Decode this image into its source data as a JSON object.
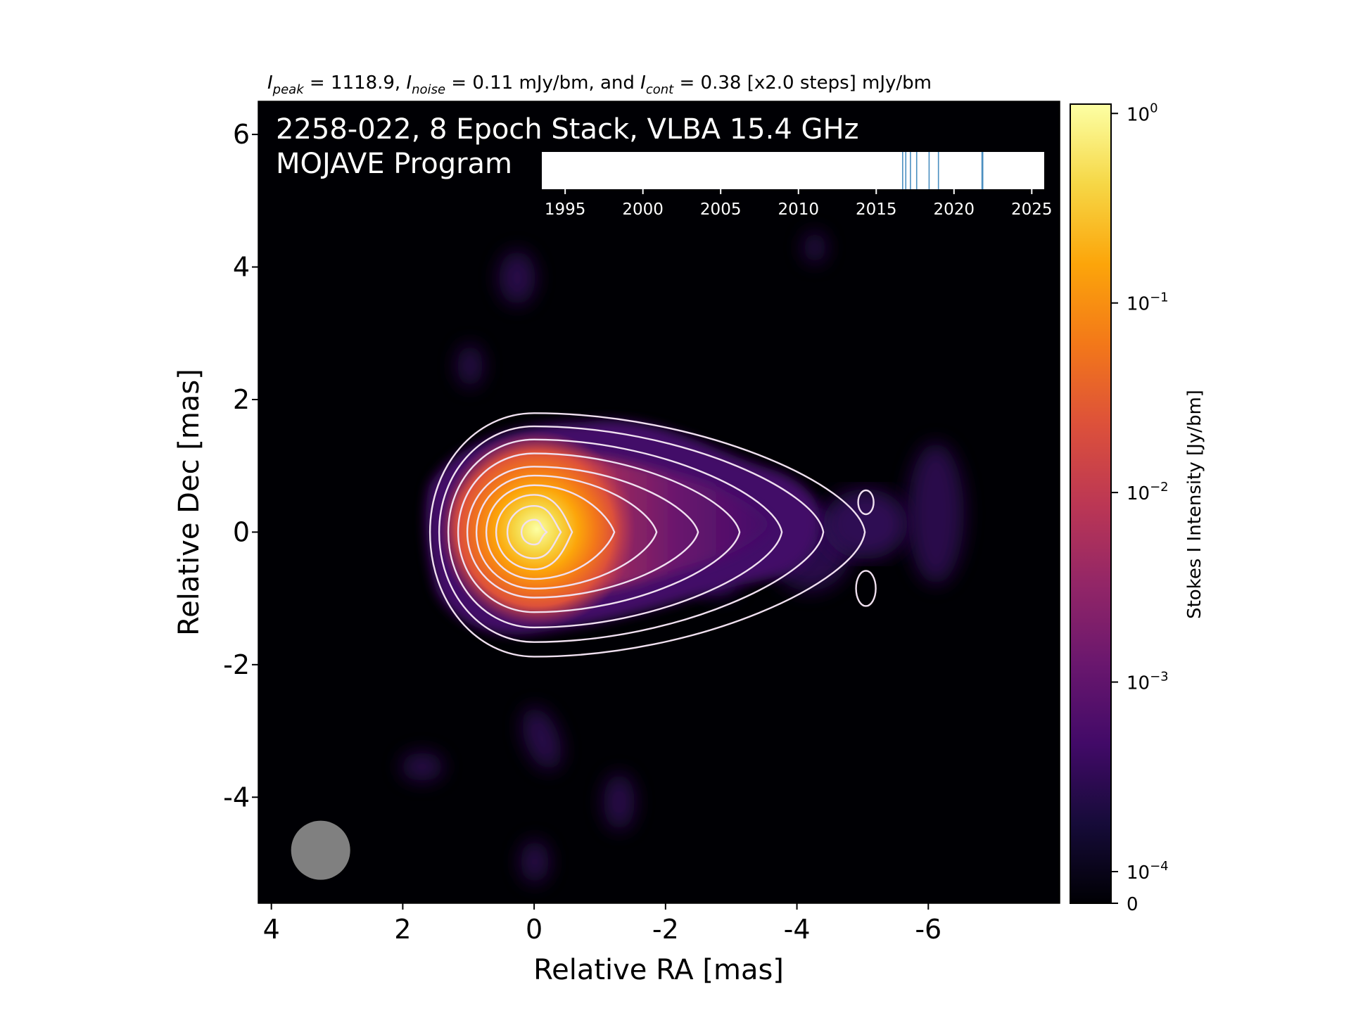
{
  "chart_data": {
    "type": "heatmap",
    "header": {
      "peak_symbol": "I",
      "peak_sub": "peak",
      "peak_text": " = 1118.9, ",
      "noise_symbol": "I",
      "noise_sub": "noise",
      "noise_text": " = 0.11 mJy/bm, and ",
      "cont_symbol": "I",
      "cont_sub": "cont",
      "cont_text": " = 0.38 [x2.0 steps] mJy/bm"
    },
    "source_title": "2258-022, 8 Epoch Stack, VLBA 15.4 GHz",
    "program": "MOJAVE Program",
    "xlabel": "Relative RA [mas]",
    "ylabel": "Relative Dec [mas]",
    "xlim": [
      4.2,
      -8.0
    ],
    "ylim": [
      -5.6,
      6.5
    ],
    "xticks": [
      4,
      2,
      0,
      -2,
      -4,
      -6
    ],
    "xtick_labels": [
      "4",
      "2",
      "0",
      "-2",
      "-4",
      "-6"
    ],
    "yticks": [
      6,
      4,
      2,
      0,
      -2,
      -4
    ],
    "ytick_labels": [
      "6",
      "4",
      "2",
      "0",
      "-2",
      "-4"
    ],
    "peak_position": [
      0,
      0
    ],
    "core_flux_jy": 1.1189,
    "beam_circle": {
      "ra": 3.25,
      "dec": -4.8,
      "radius_mas": 0.45
    },
    "contour_color": "#f0e0f0",
    "colorbar": {
      "label": "Stokes I Intensity [Jy/bm]",
      "scale": "log",
      "ticks": [
        {
          "value": 1,
          "base": "10",
          "exp": "0"
        },
        {
          "value": 0.1,
          "base": "10",
          "exp": "−1"
        },
        {
          "value": 0.01,
          "base": "10",
          "exp": "−2"
        },
        {
          "value": 0.001,
          "base": "10",
          "exp": "−3"
        },
        {
          "value": 0.0001,
          "base": "10",
          "exp": "−4"
        },
        {
          "value": 0,
          "label": "0"
        }
      ],
      "colormap": "inferno"
    },
    "timeline": {
      "xlim": [
        1993.5,
        2025.8
      ],
      "ticks": [
        "1995",
        "2000",
        "2005",
        "2010",
        "2015",
        "2020",
        "2025"
      ],
      "tick_values": [
        1995,
        2000,
        2005,
        2010,
        2015,
        2020,
        2025
      ],
      "epochs": [
        2016.7,
        2016.9,
        2017.2,
        2017.6,
        2018.4,
        2019.0,
        2021.8,
        2021.85
      ],
      "epoch_color": "#4a8fc0"
    }
  }
}
